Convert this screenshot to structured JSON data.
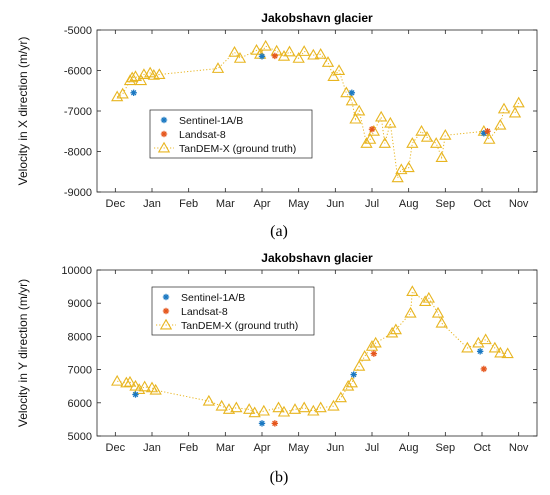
{
  "colors": {
    "sentinel": "#1a78c2",
    "landsat": "#e5561c",
    "tandem": "#e8b520",
    "axis": "#262626",
    "grid": "#ececec"
  },
  "chart_data": [
    {
      "type": "scatter",
      "caption": "(a)",
      "title": "Jakobshavn glacier",
      "ylabel": "Velocity in X direction (m/yr)",
      "xlabel": "",
      "xlim": [
        0,
        12
      ],
      "ylim": [
        -9000,
        -5000
      ],
      "yticks": [
        -9000,
        -8000,
        -7000,
        -6000,
        -5000
      ],
      "ytick_labels": [
        "-9000",
        "-8000",
        "-7000",
        "-6000",
        "-5000"
      ],
      "xtick_labels": [
        "Dec",
        "Jan",
        "Feb",
        "Mar",
        "Apr",
        "May",
        "Jun",
        "Jul",
        "Aug",
        "Sep",
        "Oct",
        "Nov"
      ],
      "xticks": [
        0.5,
        1.5,
        2.5,
        3.5,
        4.5,
        5.5,
        6.5,
        7.5,
        8.5,
        9.5,
        10.5,
        11.5
      ],
      "legend": {
        "position": "center-left",
        "entries": [
          "Sentinel-1A/B",
          "Landsat-8",
          "TanDEM-X (ground truth)"
        ]
      },
      "series": [
        {
          "name": "TanDEM-X (ground truth)",
          "marker": "triangle",
          "line": "dotted",
          "points": [
            [
              0.55,
              -6650
            ],
            [
              0.7,
              -6580
            ],
            [
              0.9,
              -6250
            ],
            [
              0.96,
              -6180
            ],
            [
              1.05,
              -6150
            ],
            [
              1.2,
              -6250
            ],
            [
              1.28,
              -6100
            ],
            [
              1.45,
              -6060
            ],
            [
              1.55,
              -6120
            ],
            [
              1.7,
              -6100
            ],
            [
              3.3,
              -5950
            ],
            [
              3.75,
              -5550
            ],
            [
              3.9,
              -5700
            ],
            [
              4.35,
              -5500
            ],
            [
              4.45,
              -5600
            ],
            [
              4.6,
              -5400
            ],
            [
              4.9,
              -5520
            ],
            [
              5.1,
              -5650
            ],
            [
              5.25,
              -5540
            ],
            [
              5.5,
              -5700
            ],
            [
              5.65,
              -5530
            ],
            [
              5.9,
              -5620
            ],
            [
              6.1,
              -5600
            ],
            [
              6.3,
              -5800
            ],
            [
              6.45,
              -6150
            ],
            [
              6.6,
              -6000
            ],
            [
              6.8,
              -6550
            ],
            [
              6.95,
              -6750
            ],
            [
              7.05,
              -7200
            ],
            [
              7.15,
              -7000
            ],
            [
              7.35,
              -7800
            ],
            [
              7.45,
              -7700
            ],
            [
              7.55,
              -7500
            ],
            [
              7.75,
              -7150
            ],
            [
              7.85,
              -7800
            ],
            [
              8.0,
              -7300
            ],
            [
              8.2,
              -8650
            ],
            [
              8.3,
              -8450
            ],
            [
              8.5,
              -8400
            ],
            [
              8.6,
              -7800
            ],
            [
              8.85,
              -7500
            ],
            [
              9.0,
              -7650
            ],
            [
              9.25,
              -7800
            ],
            [
              9.4,
              -8150
            ],
            [
              9.5,
              -7600
            ],
            [
              10.55,
              -7500
            ],
            [
              10.7,
              -7700
            ],
            [
              11.0,
              -7350
            ],
            [
              11.1,
              -6950
            ],
            [
              11.4,
              -7050
            ],
            [
              11.5,
              -6800
            ]
          ]
        },
        {
          "name": "Sentinel-1A/B",
          "marker": "star",
          "line": "none",
          "points": [
            [
              1.0,
              -6550
            ],
            [
              4.5,
              -5650
            ],
            [
              6.95,
              -6550
            ],
            [
              10.55,
              -7550
            ]
          ]
        },
        {
          "name": "Landsat-8",
          "marker": "star",
          "line": "none",
          "points": [
            [
              4.85,
              -5640
            ],
            [
              7.5,
              -7450
            ],
            [
              10.65,
              -7500
            ]
          ]
        }
      ]
    },
    {
      "type": "scatter",
      "caption": "(b)",
      "title": "Jakobshavn glacier",
      "ylabel": "Velocity in Y direction (m/yr)",
      "xlabel": "",
      "xlim": [
        0,
        12
      ],
      "ylim": [
        5000,
        10000
      ],
      "yticks": [
        5000,
        6000,
        7000,
        8000,
        9000,
        10000
      ],
      "ytick_labels": [
        "5000",
        "6000",
        "7000",
        "8000",
        "9000",
        "10000"
      ],
      "xtick_labels": [
        "Dec",
        "Jan",
        "Feb",
        "Mar",
        "Apr",
        "May",
        "Jun",
        "Jul",
        "Aug",
        "Sep",
        "Oct",
        "Nov"
      ],
      "xticks": [
        0.5,
        1.5,
        2.5,
        3.5,
        4.5,
        5.5,
        6.5,
        7.5,
        8.5,
        9.5,
        10.5,
        11.5
      ],
      "legend": {
        "position": "top-left",
        "entries": [
          "Sentinel-1A/B",
          "Landsat-8",
          "TanDEM-X (ground truth)"
        ]
      },
      "series": [
        {
          "name": "TanDEM-X (ground truth)",
          "marker": "triangle",
          "line": "dotted",
          "points": [
            [
              0.55,
              6650
            ],
            [
              0.8,
              6600
            ],
            [
              0.9,
              6620
            ],
            [
              1.05,
              6500
            ],
            [
              1.15,
              6400
            ],
            [
              1.3,
              6480
            ],
            [
              1.5,
              6450
            ],
            [
              1.6,
              6380
            ],
            [
              3.05,
              6050
            ],
            [
              3.4,
              5900
            ],
            [
              3.6,
              5800
            ],
            [
              3.8,
              5850
            ],
            [
              4.15,
              5800
            ],
            [
              4.3,
              5700
            ],
            [
              4.55,
              5750
            ],
            [
              4.95,
              5850
            ],
            [
              5.1,
              5720
            ],
            [
              5.4,
              5800
            ],
            [
              5.65,
              5850
            ],
            [
              5.9,
              5750
            ],
            [
              6.1,
              5850
            ],
            [
              6.45,
              5900
            ],
            [
              6.65,
              6150
            ],
            [
              6.85,
              6500
            ],
            [
              6.95,
              6600
            ],
            [
              7.15,
              7100
            ],
            [
              7.3,
              7400
            ],
            [
              7.5,
              7700
            ],
            [
              7.6,
              7800
            ],
            [
              8.05,
              8100
            ],
            [
              8.15,
              8200
            ],
            [
              8.55,
              8700
            ],
            [
              8.6,
              9350
            ],
            [
              8.95,
              9050
            ],
            [
              9.05,
              9150
            ],
            [
              9.3,
              8700
            ],
            [
              9.4,
              8400
            ],
            [
              10.1,
              7650
            ],
            [
              10.4,
              7800
            ],
            [
              10.6,
              7900
            ],
            [
              10.85,
              7650
            ],
            [
              11.0,
              7500
            ],
            [
              11.2,
              7480
            ]
          ]
        },
        {
          "name": "Sentinel-1A/B",
          "marker": "star",
          "line": "none",
          "points": [
            [
              1.05,
              6250
            ],
            [
              4.5,
              5380
            ],
            [
              7.0,
              6850
            ],
            [
              10.45,
              7550
            ]
          ]
        },
        {
          "name": "Landsat-8",
          "marker": "star",
          "line": "none",
          "points": [
            [
              4.85,
              5380
            ],
            [
              7.55,
              7480
            ],
            [
              10.55,
              7020
            ]
          ]
        }
      ]
    }
  ]
}
